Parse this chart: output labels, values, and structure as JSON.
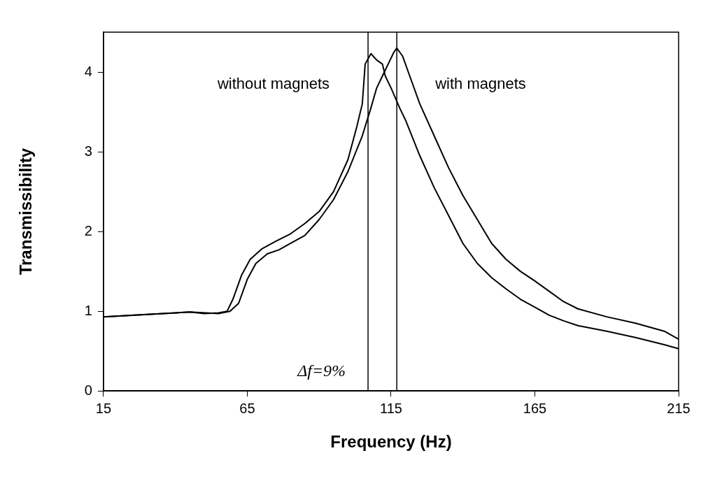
{
  "chart_data": {
    "type": "line",
    "xlabel": "Frequency (Hz)",
    "ylabel": "Transmissibility",
    "xlim": [
      15,
      215
    ],
    "xticks": [
      15,
      65,
      115,
      165,
      215
    ],
    "ylim": [
      0,
      4.5
    ],
    "yticks": [
      0,
      1,
      2,
      3,
      4
    ],
    "grid": false,
    "legend": false,
    "marker": "none",
    "line_style": "solid",
    "series": [
      {
        "color": "#000000",
        "x": [
          15,
          30,
          45,
          50,
          55,
          58,
          60,
          63,
          66,
          70,
          75,
          80,
          85,
          90,
          95,
          100,
          103,
          105,
          106,
          108,
          110,
          112,
          113,
          115,
          118,
          120,
          125,
          130,
          135,
          140,
          145,
          150,
          155,
          160,
          165,
          170,
          175,
          180,
          190,
          200,
          210,
          215
        ],
        "values": [
          0.93,
          0.96,
          0.99,
          0.97,
          0.98,
          1.0,
          1.15,
          1.45,
          1.65,
          1.78,
          1.88,
          1.97,
          2.1,
          2.25,
          2.5,
          2.9,
          3.3,
          3.6,
          4.1,
          4.23,
          4.15,
          4.1,
          3.95,
          3.8,
          3.55,
          3.4,
          2.95,
          2.55,
          2.2,
          1.85,
          1.6,
          1.42,
          1.28,
          1.15,
          1.05,
          0.95,
          0.88,
          0.82,
          0.75,
          0.67,
          0.58,
          0.53
        ]
      },
      {
        "color": "#000000",
        "x": [
          15,
          45,
          55,
          59,
          62,
          65,
          68,
          72,
          76,
          80,
          85,
          90,
          95,
          100,
          105,
          108,
          110,
          112,
          114,
          116,
          117,
          119,
          121,
          125,
          130,
          135,
          140,
          145,
          150,
          155,
          160,
          165,
          170,
          175,
          180,
          190,
          200,
          210,
          215
        ],
        "values": [
          0.93,
          0.99,
          0.97,
          1.0,
          1.1,
          1.4,
          1.6,
          1.72,
          1.77,
          1.85,
          1.95,
          2.15,
          2.4,
          2.75,
          3.2,
          3.55,
          3.8,
          3.95,
          4.1,
          4.25,
          4.3,
          4.2,
          4.0,
          3.6,
          3.2,
          2.8,
          2.45,
          2.15,
          1.85,
          1.65,
          1.5,
          1.38,
          1.25,
          1.12,
          1.03,
          0.93,
          0.85,
          0.75,
          0.65
        ]
      }
    ],
    "ref_lines": [
      {
        "axis": "x",
        "value": 107,
        "color": "#000000"
      },
      {
        "axis": "x",
        "value": 117,
        "color": "#000000"
      }
    ],
    "annotations": [
      "without magnets",
      "with magnets",
      "Δf=9%"
    ]
  }
}
